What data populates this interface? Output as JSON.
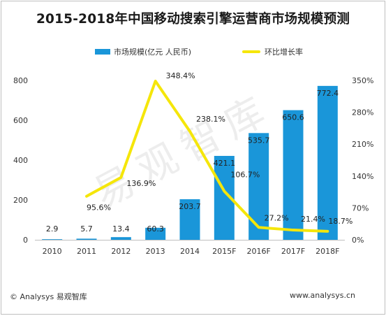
{
  "title": "2015-2018年中国移动搜索引擎运营商市场规模预测",
  "legend": {
    "bar_label": "市场规模(亿元 人民币)",
    "line_label": "环比增长率"
  },
  "watermark": "易观智库",
  "footer": {
    "source": "© Analysys 易观智库",
    "site": "www.analysys.cn"
  },
  "colors": {
    "bar": "#1a96d9",
    "line": "#f5e60a"
  },
  "chart_data": {
    "type": "bar",
    "categories": [
      "2010",
      "2011",
      "2012",
      "2013",
      "2014",
      "2015F",
      "2016F",
      "2017F",
      "2018F"
    ],
    "series": [
      {
        "name": "市场规模(亿元 人民币)",
        "type": "bar",
        "axis": "left",
        "values": [
          2.9,
          5.7,
          13.4,
          60.3,
          203.7,
          421.1,
          535.7,
          650.6,
          772.4
        ],
        "labels": [
          "2.9",
          "5.7",
          "13.4",
          "60.3",
          "203.7",
          "421.1",
          "535.7",
          "650.6",
          "772.4"
        ]
      },
      {
        "name": "环比增长率",
        "type": "line",
        "axis": "right",
        "values": [
          null,
          95.6,
          136.9,
          348.4,
          238.1,
          106.7,
          27.2,
          21.4,
          18.7
        ],
        "labels": [
          "",
          "95.6%",
          "136.9%",
          "348.4%",
          "238.1%",
          "106.7%",
          "27.2%",
          "21.4%",
          "18.7%"
        ]
      }
    ],
    "y_left": {
      "range": [
        0,
        800
      ],
      "ticks": [
        0,
        200,
        400,
        600,
        800
      ],
      "tick_labels": [
        "0",
        "200",
        "400",
        "600",
        "800"
      ]
    },
    "y_right": {
      "range": [
        0,
        350
      ],
      "ticks": [
        0,
        70,
        140,
        210,
        280,
        350
      ],
      "tick_labels": [
        "0%",
        "70%",
        "140%",
        "210%",
        "280%",
        "350%"
      ]
    },
    "grid": false,
    "legend_position": "top"
  }
}
